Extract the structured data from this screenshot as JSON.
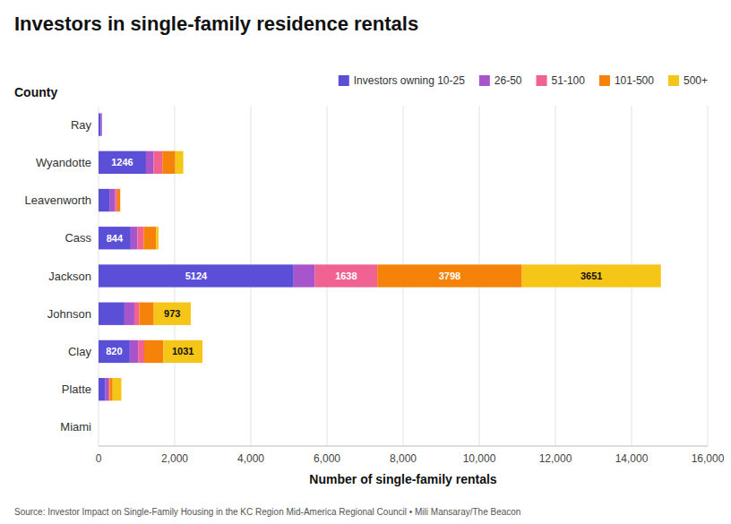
{
  "chart_data": {
    "type": "bar",
    "orientation": "horizontal",
    "stacked": true,
    "title": "Investors in single-family residence rentals",
    "x_label": "Number of single-family rentals",
    "y_label": "County",
    "source": "Source: Investor Impact on Single-Family Housing in the KC Region Mid-America Regional Council • Mili Mansaray/The Beacon",
    "categories": [
      "Miami",
      "Platte",
      "Clay",
      "Johnson",
      "Jackson",
      "Cass",
      "Leavenworth",
      "Wyandotte",
      "Ray"
    ],
    "series": [
      {
        "name": "Investors owning 10-25",
        "color": "#5B4FD8",
        "values": [
          0,
          180,
          820,
          680,
          5124,
          844,
          300,
          1246,
          60
        ],
        "value_labels": [
          null,
          null,
          "820",
          null,
          "5124",
          "844",
          null,
          "1246",
          null
        ]
      },
      {
        "name": "26-50",
        "color": "#A855CC",
        "values": [
          0,
          80,
          220,
          260,
          560,
          180,
          130,
          200,
          30
        ],
        "value_labels": [
          null,
          null,
          null,
          null,
          null,
          null,
          null,
          null,
          null
        ]
      },
      {
        "name": "51-100",
        "color": "#F06292",
        "values": [
          0,
          30,
          160,
          130,
          1638,
          160,
          60,
          230,
          0
        ],
        "value_labels": [
          null,
          null,
          null,
          null,
          "1638",
          null,
          null,
          null,
          null
        ]
      },
      {
        "name": "101-500",
        "color": "#F5830A",
        "values": [
          0,
          80,
          500,
          380,
          3798,
          330,
          80,
          340,
          0
        ],
        "value_labels": [
          null,
          null,
          null,
          null,
          "3798",
          null,
          null,
          null,
          null
        ]
      },
      {
        "name": "500+",
        "color": "#F5C518",
        "values": [
          0,
          230,
          1031,
          973,
          3651,
          60,
          0,
          210,
          0
        ],
        "value_labels": [
          null,
          null,
          "1031",
          "973",
          "3651",
          null,
          null,
          null,
          null
        ]
      }
    ],
    "xlim": [
      0,
      16000
    ],
    "xticks": [
      0,
      {
        "value": 2000,
        "label": "2,000"
      },
      {
        "value": 4000,
        "label": "4,000"
      },
      {
        "value": 6000,
        "label": "6,000"
      },
      {
        "value": 8000,
        "label": "8,000"
      },
      {
        "value": 10000,
        "label": "10,000"
      },
      {
        "value": 12000,
        "label": "12,000"
      },
      {
        "value": 14000,
        "label": "14,000"
      },
      {
        "value": 16000,
        "label": "16,000"
      }
    ],
    "grid": true,
    "legend": "top-right"
  }
}
